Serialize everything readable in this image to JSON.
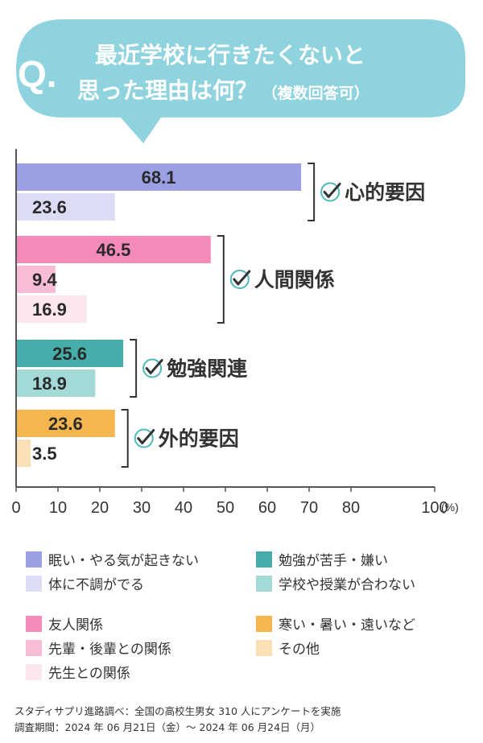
{
  "question": {
    "mark": "Q.",
    "line1": "最近学校に行きたくないと",
    "line2_main": "思った理由は何？",
    "line2_note": "（複数回答可）"
  },
  "chart_data": {
    "type": "bar",
    "orientation": "horizontal",
    "xlim": [
      0,
      100
    ],
    "x_ticks": [
      "0",
      "10",
      "20",
      "30",
      "40",
      "50",
      "60",
      "70",
      "80",
      "100"
    ],
    "unit_label": "(%)",
    "grid": false,
    "groups": [
      {
        "label": "心的要因",
        "bars": [
          {
            "name": "眠い・やる気が起きない",
            "value": 68.1,
            "label": "68.1",
            "color": "#9b9fe3"
          },
          {
            "name": "体に不調がでる",
            "value": 23.6,
            "label": "23.6",
            "color": "#dcdcf5"
          }
        ]
      },
      {
        "label": "人間関係",
        "bars": [
          {
            "name": "友人関係",
            "value": 46.5,
            "label": "46.5",
            "color": "#f48ab9"
          },
          {
            "name": "先輩・後輩との関係",
            "value": 9.4,
            "label": "9.4",
            "color": "#f7bcd6"
          },
          {
            "name": "先生との関係",
            "value": 16.9,
            "label": "16.9",
            "color": "#fce6ef"
          }
        ]
      },
      {
        "label": "勉強関連",
        "bars": [
          {
            "name": "勉強が苦手・嫌い",
            "value": 25.6,
            "label": "25.6",
            "color": "#45aeaa"
          },
          {
            "name": "学校や授業が合わない",
            "value": 18.9,
            "label": "18.9",
            "color": "#a3dad8"
          }
        ]
      },
      {
        "label": "外的要因",
        "bars": [
          {
            "name": "寒い・暑い・遠いなど",
            "value": 23.6,
            "label": "23.6",
            "color": "#f6b64f"
          },
          {
            "name": "その他",
            "value": 3.5,
            "label": "3.5",
            "color": "#fbe0b5"
          }
        ]
      }
    ]
  },
  "legend": [
    {
      "label": "眠い・やる気が起きない",
      "color": "#9b9fe3"
    },
    {
      "label": "体に不調がでる",
      "color": "#dcdcf5"
    },
    {
      "label": "勉強が苦手・嫌い",
      "color": "#45aeaa"
    },
    {
      "label": "学校や授業が合わない",
      "color": "#a3dad8"
    },
    {
      "label": "友人関係",
      "color": "#f48ab9"
    },
    {
      "label": "先輩・後輩との関係",
      "color": "#f7bcd6"
    },
    {
      "label": "先生との関係",
      "color": "#fce6ef"
    },
    {
      "label": "寒い・暑い・遠いなど",
      "color": "#f6b64f"
    },
    {
      "label": "その他",
      "color": "#fbe0b5"
    }
  ],
  "source": {
    "line1": "スタディサプリ進路調べ：全国の高校生男女 310 人にアンケートを実施",
    "line2": "調査期間：2024 年 06 月21日（金）〜 2024 年 06 月24日（月）"
  },
  "colors": {
    "bubble": "#8ed3dd",
    "title_text": "#ffffff",
    "axis": "#555555",
    "check": "#4fb8b8"
  }
}
